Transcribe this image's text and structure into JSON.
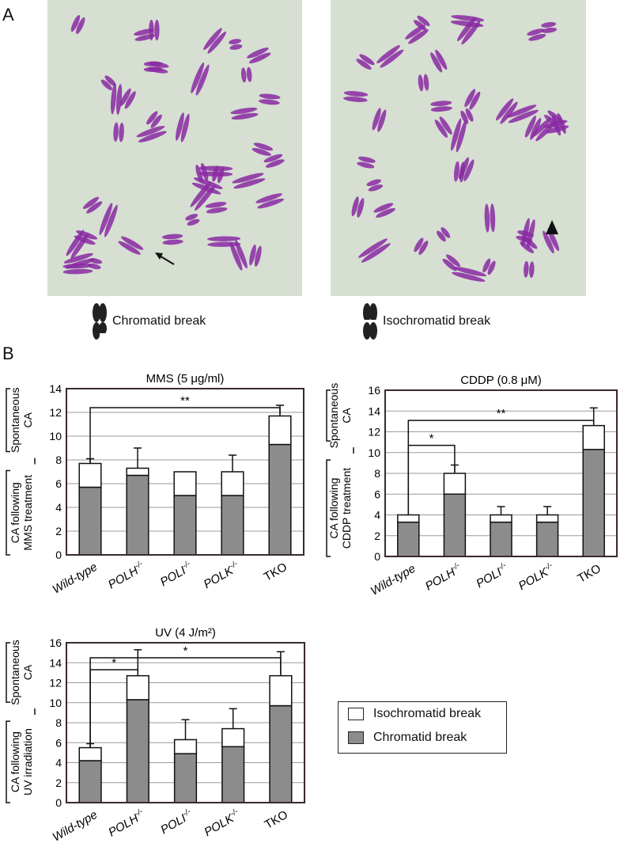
{
  "panels": {
    "a": "A",
    "b": "B"
  },
  "micrographs": [
    {
      "legend": "Chromatid break"
    },
    {
      "legend": "Isochromatid break"
    }
  ],
  "colors": {
    "chromatid": "#8c8c8c",
    "isochromatid": "#ffffff",
    "chromosome": "#8a2aa3",
    "slide_bg": "#d6dfd2"
  },
  "legend": {
    "items": [
      "Isochromatid break",
      "Chromatid break"
    ]
  },
  "chart_data": [
    {
      "type": "bar",
      "stacked": true,
      "title": "MMS (5 μg/ml)",
      "categories": [
        "Wild-type",
        "POLH-/-",
        "POLI-/-",
        "POLK-/-",
        "TKO"
      ],
      "ylim": [
        0,
        14
      ],
      "yticks": [
        0,
        2,
        4,
        6,
        8,
        10,
        12,
        14
      ],
      "ylabel_top": "Spontaneous CA",
      "ylabel_bottom": [
        "CA following",
        "MMS treatment"
      ],
      "series": [
        {
          "name": "Chromatid break",
          "values": [
            5.7,
            6.7,
            5.0,
            5.0,
            9.3
          ]
        },
        {
          "name": "Isochromatid break",
          "values": [
            2.0,
            0.6,
            2.0,
            2.0,
            2.4
          ]
        }
      ],
      "errors": [
        0.4,
        1.7,
        0,
        1.4,
        0.9
      ],
      "significance": [
        {
          "from": 0,
          "to": 4,
          "label": "**",
          "y": 12.4
        }
      ]
    },
    {
      "type": "bar",
      "stacked": true,
      "title": "CDDP (0.8 μM)",
      "categories": [
        "Wild-type",
        "POLH-/-",
        "POLI-/-",
        "POLK-/-",
        "TKO"
      ],
      "ylim": [
        0,
        16
      ],
      "yticks": [
        0,
        2,
        4,
        6,
        8,
        10,
        12,
        14,
        16
      ],
      "ylabel_top": "Spontaneous CA",
      "ylabel_bottom": [
        "CA following",
        "CDDP treatment"
      ],
      "series": [
        {
          "name": "Chromatid break",
          "values": [
            3.3,
            6.0,
            3.3,
            3.3,
            10.3
          ]
        },
        {
          "name": "Isochromatid break",
          "values": [
            0.7,
            2.0,
            0.7,
            0.7,
            2.3
          ]
        }
      ],
      "errors": [
        0,
        0.8,
        0.8,
        0.8,
        1.7
      ],
      "significance": [
        {
          "from": 0,
          "to": 1,
          "label": "*",
          "y": 10.7
        },
        {
          "from": 0,
          "to": 4,
          "label": "**",
          "y": 13.1
        }
      ]
    },
    {
      "type": "bar",
      "stacked": true,
      "title": "UV (4 J/m²)",
      "categories": [
        "Wild-type",
        "POLH-/-",
        "POLI-/-",
        "POLK-/-",
        "TKO"
      ],
      "ylim": [
        0,
        16
      ],
      "yticks": [
        0,
        2,
        4,
        6,
        8,
        10,
        12,
        14,
        16
      ],
      "ylabel_top": "Spontaneous CA",
      "ylabel_bottom": [
        "CA following",
        "UV irradiation"
      ],
      "series": [
        {
          "name": "Chromatid break",
          "values": [
            4.2,
            10.3,
            4.9,
            5.6,
            9.7
          ]
        },
        {
          "name": "Isochromatid break",
          "values": [
            1.3,
            2.4,
            1.4,
            1.8,
            3.0
          ]
        }
      ],
      "errors": [
        0.4,
        2.6,
        2.0,
        2.0,
        2.4
      ],
      "significance": [
        {
          "from": 0,
          "to": 1,
          "label": "*",
          "y": 13.3
        },
        {
          "from": 0,
          "to": 4,
          "label": "*",
          "y": 14.5
        }
      ]
    }
  ]
}
